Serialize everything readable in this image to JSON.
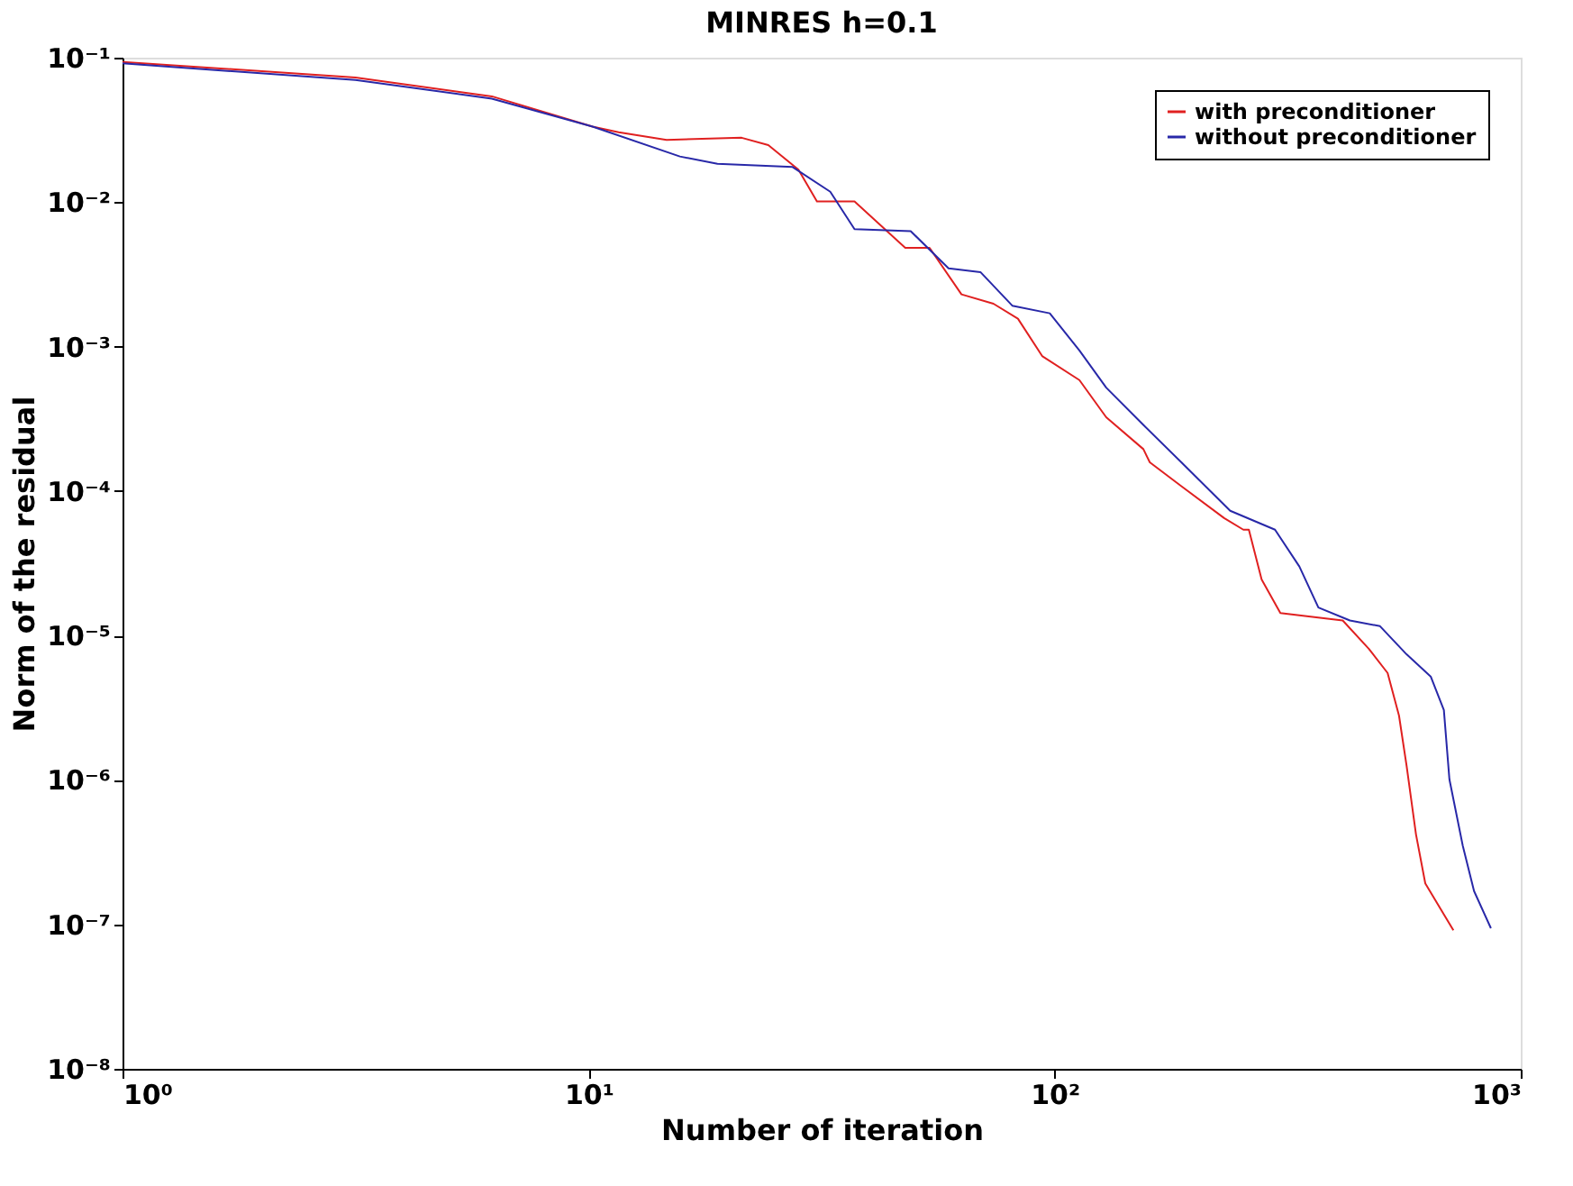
{
  "chart_data": {
    "type": "line",
    "title": "MINRES h=0.1",
    "xlabel": "Number of iteration",
    "ylabel": "Norm of the residual",
    "log": "xy",
    "grid": false,
    "legend": "top right",
    "marker": "none",
    "line_style": "solid",
    "xlim": [
      1,
      1000
    ],
    "ylim": [
      1e-08,
      0.1
    ],
    "xticks": [
      {
        "value": 1,
        "label": "10⁰"
      },
      {
        "value": 10,
        "label": "10¹"
      },
      {
        "value": 100,
        "label": "10²"
      },
      {
        "value": 1000,
        "label": "10³"
      }
    ],
    "yticks": [
      {
        "value": 1e-08,
        "label": "10⁻⁸"
      },
      {
        "value": 1e-07,
        "label": "10⁻⁷"
      },
      {
        "value": 1e-06,
        "label": "10⁻⁶"
      },
      {
        "value": 1e-05,
        "label": "10⁻⁵"
      },
      {
        "value": 0.0001,
        "label": "10⁻⁴"
      },
      {
        "value": 0.001,
        "label": "10⁻³"
      },
      {
        "value": 0.01,
        "label": "10⁻²"
      },
      {
        "value": 0.1,
        "label": "10⁻¹"
      }
    ],
    "series": [
      {
        "name": "with preconditioner",
        "color": "#e02020",
        "x": [
          1,
          3.16,
          6.2,
          10.2,
          11.6,
          14.7,
          21.3,
          24.3,
          28.2,
          30.9,
          37.2,
          47.8,
          53.9,
          63.1,
          73.9,
          83.4,
          94,
          113,
          129,
          155,
          160,
          187,
          231,
          254,
          261,
          278,
          305,
          415,
          472,
          518,
          548,
          569,
          596,
          624,
          717
        ],
        "values": [
          0.0935,
          0.073,
          0.054,
          0.0333,
          0.0305,
          0.027,
          0.0279,
          0.0248,
          0.0168,
          0.0101,
          0.0101,
          0.00483,
          0.00483,
          0.0023,
          0.00198,
          0.00156,
          0.00086,
          0.000586,
          0.000324,
          0.000195,
          0.000158,
          0.000108,
          6.5e-05,
          5.4e-05,
          5.4e-05,
          2.44e-05,
          1.43e-05,
          1.27e-05,
          8.1e-06,
          5.5e-06,
          2.79e-06,
          1.25e-06,
          4.2e-07,
          1.92e-07,
          9.1e-08
        ]
      },
      {
        "name": "without preconditioner",
        "color": "#2828a8",
        "x": [
          1,
          3.16,
          6.2,
          10.2,
          15.7,
          18.9,
          27.4,
          33,
          37.2,
          49.1,
          59.2,
          69.3,
          81.1,
          97.6,
          113,
          129,
          155,
          187,
          238,
          297,
          335,
          368,
          430,
          499,
          569,
          641,
          684,
          703,
          751,
          794,
          863
        ],
        "values": [
          0.0914,
          0.07,
          0.052,
          0.0333,
          0.0207,
          0.0184,
          0.0175,
          0.0118,
          0.0065,
          0.0063,
          0.00348,
          0.00328,
          0.00192,
          0.0017,
          0.00094,
          0.00052,
          0.000287,
          0.000158,
          7.3e-05,
          5.4e-05,
          3e-05,
          1.56e-05,
          1.27e-05,
          1.16e-05,
          7.4e-06,
          5.2e-06,
          3.05e-06,
          1.01e-06,
          3.5e-07,
          1.7e-07,
          9.4e-08
        ]
      }
    ]
  }
}
